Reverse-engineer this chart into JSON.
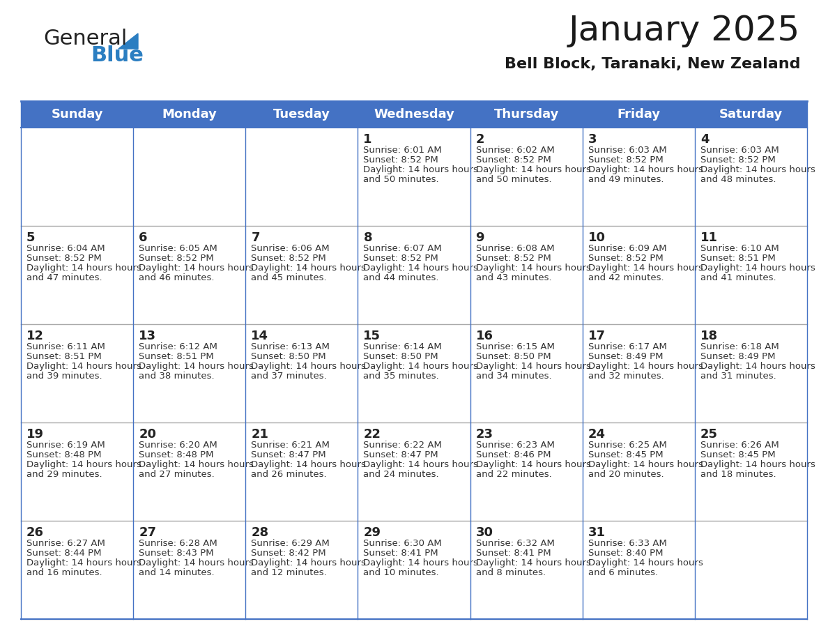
{
  "title": "January 2025",
  "subtitle": "Bell Block, Taranaki, New Zealand",
  "header_color": "#4472C4",
  "header_text_color": "#FFFFFF",
  "cell_bg_color": "#FFFFFF",
  "alt_row_color": "#F2F2F2",
  "text_color": "#333333",
  "border_color": "#4472C4",
  "days_of_week": [
    "Sunday",
    "Monday",
    "Tuesday",
    "Wednesday",
    "Thursday",
    "Friday",
    "Saturday"
  ],
  "calendar_data": [
    [
      {
        "day": "",
        "sunrise": "",
        "sunset": "",
        "daylight": ""
      },
      {
        "day": "",
        "sunrise": "",
        "sunset": "",
        "daylight": ""
      },
      {
        "day": "",
        "sunrise": "",
        "sunset": "",
        "daylight": ""
      },
      {
        "day": "1",
        "sunrise": "6:01 AM",
        "sunset": "8:52 PM",
        "daylight": "14 hours and 50 minutes."
      },
      {
        "day": "2",
        "sunrise": "6:02 AM",
        "sunset": "8:52 PM",
        "daylight": "14 hours and 50 minutes."
      },
      {
        "day": "3",
        "sunrise": "6:03 AM",
        "sunset": "8:52 PM",
        "daylight": "14 hours and 49 minutes."
      },
      {
        "day": "4",
        "sunrise": "6:03 AM",
        "sunset": "8:52 PM",
        "daylight": "14 hours and 48 minutes."
      }
    ],
    [
      {
        "day": "5",
        "sunrise": "6:04 AM",
        "sunset": "8:52 PM",
        "daylight": "14 hours and 47 minutes."
      },
      {
        "day": "6",
        "sunrise": "6:05 AM",
        "sunset": "8:52 PM",
        "daylight": "14 hours and 46 minutes."
      },
      {
        "day": "7",
        "sunrise": "6:06 AM",
        "sunset": "8:52 PM",
        "daylight": "14 hours and 45 minutes."
      },
      {
        "day": "8",
        "sunrise": "6:07 AM",
        "sunset": "8:52 PM",
        "daylight": "14 hours and 44 minutes."
      },
      {
        "day": "9",
        "sunrise": "6:08 AM",
        "sunset": "8:52 PM",
        "daylight": "14 hours and 43 minutes."
      },
      {
        "day": "10",
        "sunrise": "6:09 AM",
        "sunset": "8:52 PM",
        "daylight": "14 hours and 42 minutes."
      },
      {
        "day": "11",
        "sunrise": "6:10 AM",
        "sunset": "8:51 PM",
        "daylight": "14 hours and 41 minutes."
      }
    ],
    [
      {
        "day": "12",
        "sunrise": "6:11 AM",
        "sunset": "8:51 PM",
        "daylight": "14 hours and 39 minutes."
      },
      {
        "day": "13",
        "sunrise": "6:12 AM",
        "sunset": "8:51 PM",
        "daylight": "14 hours and 38 minutes."
      },
      {
        "day": "14",
        "sunrise": "6:13 AM",
        "sunset": "8:50 PM",
        "daylight": "14 hours and 37 minutes."
      },
      {
        "day": "15",
        "sunrise": "6:14 AM",
        "sunset": "8:50 PM",
        "daylight": "14 hours and 35 minutes."
      },
      {
        "day": "16",
        "sunrise": "6:15 AM",
        "sunset": "8:50 PM",
        "daylight": "14 hours and 34 minutes."
      },
      {
        "day": "17",
        "sunrise": "6:17 AM",
        "sunset": "8:49 PM",
        "daylight": "14 hours and 32 minutes."
      },
      {
        "day": "18",
        "sunrise": "6:18 AM",
        "sunset": "8:49 PM",
        "daylight": "14 hours and 31 minutes."
      }
    ],
    [
      {
        "day": "19",
        "sunrise": "6:19 AM",
        "sunset": "8:48 PM",
        "daylight": "14 hours and 29 minutes."
      },
      {
        "day": "20",
        "sunrise": "6:20 AM",
        "sunset": "8:48 PM",
        "daylight": "14 hours and 27 minutes."
      },
      {
        "day": "21",
        "sunrise": "6:21 AM",
        "sunset": "8:47 PM",
        "daylight": "14 hours and 26 minutes."
      },
      {
        "day": "22",
        "sunrise": "6:22 AM",
        "sunset": "8:47 PM",
        "daylight": "14 hours and 24 minutes."
      },
      {
        "day": "23",
        "sunrise": "6:23 AM",
        "sunset": "8:46 PM",
        "daylight": "14 hours and 22 minutes."
      },
      {
        "day": "24",
        "sunrise": "6:25 AM",
        "sunset": "8:45 PM",
        "daylight": "14 hours and 20 minutes."
      },
      {
        "day": "25",
        "sunrise": "6:26 AM",
        "sunset": "8:45 PM",
        "daylight": "14 hours and 18 minutes."
      }
    ],
    [
      {
        "day": "26",
        "sunrise": "6:27 AM",
        "sunset": "8:44 PM",
        "daylight": "14 hours and 16 minutes."
      },
      {
        "day": "27",
        "sunrise": "6:28 AM",
        "sunset": "8:43 PM",
        "daylight": "14 hours and 14 minutes."
      },
      {
        "day": "28",
        "sunrise": "6:29 AM",
        "sunset": "8:42 PM",
        "daylight": "14 hours and 12 minutes."
      },
      {
        "day": "29",
        "sunrise": "6:30 AM",
        "sunset": "8:41 PM",
        "daylight": "14 hours and 10 minutes."
      },
      {
        "day": "30",
        "sunrise": "6:32 AM",
        "sunset": "8:41 PM",
        "daylight": "14 hours and 8 minutes."
      },
      {
        "day": "31",
        "sunrise": "6:33 AM",
        "sunset": "8:40 PM",
        "daylight": "14 hours and 6 minutes."
      },
      {
        "day": "",
        "sunrise": "",
        "sunset": "",
        "daylight": ""
      }
    ]
  ],
  "logo_text_general": "General",
  "logo_text_blue": "Blue",
  "logo_color_general": "#222222",
  "logo_color_blue": "#2B7EC1",
  "logo_triangle_color": "#2B7EC1"
}
